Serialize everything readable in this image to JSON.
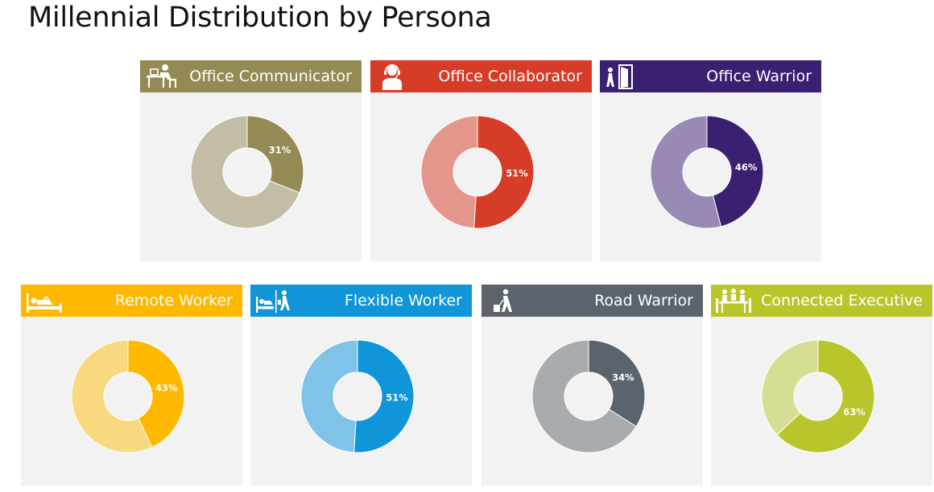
{
  "page": {
    "title": "Millennial Distribution by Persona"
  },
  "chart_data": [
    {
      "type": "pie",
      "title": "Office Communicator",
      "icon": "desk-worker-icon",
      "values": [
        31,
        69
      ],
      "label": "31%",
      "colors": {
        "header": "#948a54",
        "primary": "#948a54",
        "secondary": "#c4bda6"
      }
    },
    {
      "type": "pie",
      "title": "Office Collaborator",
      "icon": "headset-worker-icon",
      "values": [
        51,
        49
      ],
      "label": "51%",
      "colors": {
        "header": "#d63c27",
        "primary": "#d63c27",
        "secondary": "#e5968c"
      }
    },
    {
      "type": "pie",
      "title": "Office Warrior",
      "icon": "door-exit-icon",
      "values": [
        46,
        54
      ],
      "label": "46%",
      "colors": {
        "header": "#3a2070",
        "primary": "#3a2070",
        "secondary": "#9889b5"
      }
    },
    {
      "type": "pie",
      "title": "Remote Worker",
      "icon": "bed-laptop-icon",
      "values": [
        43,
        57
      ],
      "label": "43%",
      "colors": {
        "header": "#ffb800",
        "primary": "#ffb800",
        "secondary": "#f9d97f"
      }
    },
    {
      "type": "pie",
      "title": "Flexible Worker",
      "icon": "home-and-walking-icon",
      "values": [
        51,
        49
      ],
      "label": "51%",
      "colors": {
        "header": "#0f95d8",
        "primary": "#0f95d8",
        "secondary": "#7fc3e8"
      }
    },
    {
      "type": "pie",
      "title": "Road Warrior",
      "icon": "traveler-suitcase-icon",
      "values": [
        34,
        66
      ],
      "label": "34%",
      "colors": {
        "header": "#5b646c",
        "primary": "#5b646c",
        "secondary": "#a8acaf"
      }
    },
    {
      "type": "pie",
      "title": "Connected Executive",
      "icon": "meeting-table-icon",
      "values": [
        63,
        37
      ],
      "label": "63%",
      "colors": {
        "header": "#b8c62c",
        "primary": "#b8c62c",
        "secondary": "#d7de94"
      }
    }
  ]
}
